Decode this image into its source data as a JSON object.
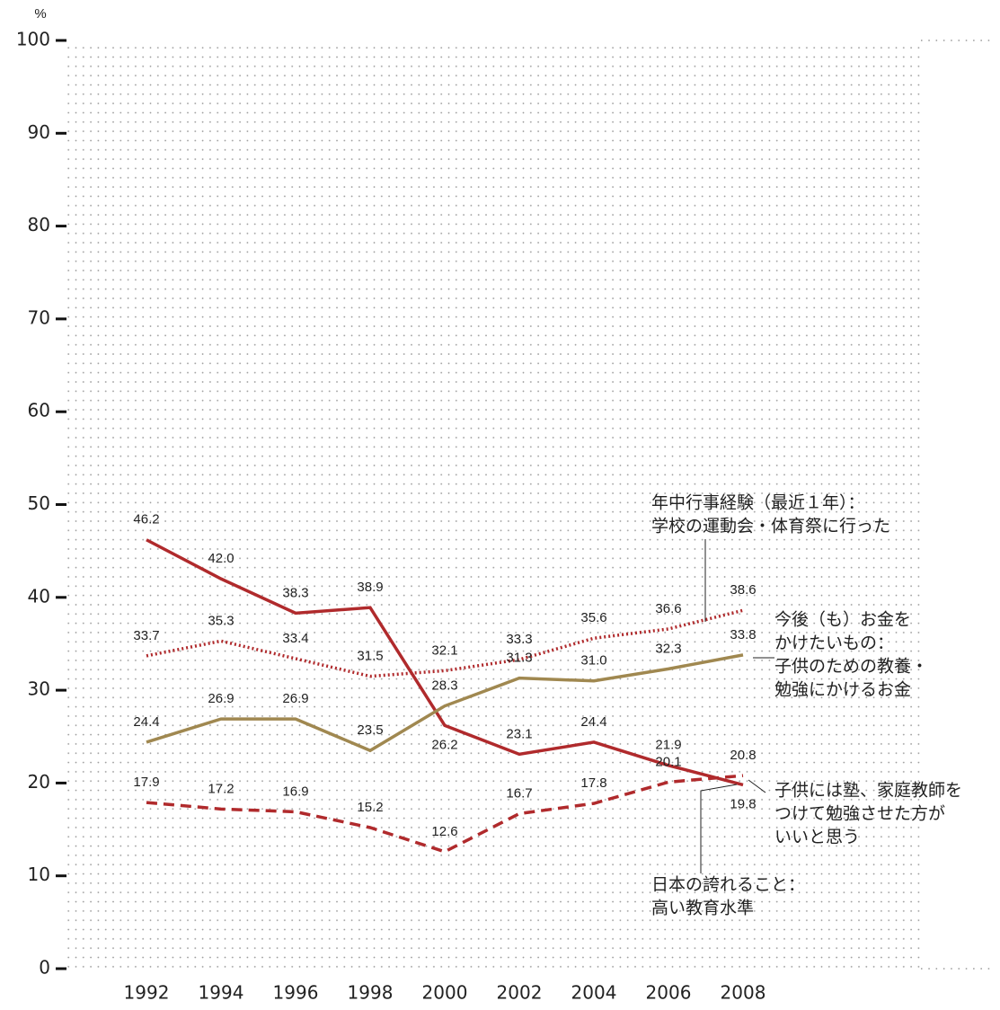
{
  "chart_data": {
    "type": "line",
    "y_label": "%",
    "x": [
      1992,
      1994,
      1996,
      1998,
      2000,
      2002,
      2004,
      2006,
      2008
    ],
    "ylim": [
      0,
      100
    ],
    "yticks": [
      0,
      10,
      20,
      30,
      40,
      50,
      60,
      70,
      80,
      90,
      100
    ],
    "grid": "dotted",
    "series": [
      {
        "name": [
          "日本の誇れること：",
          "高い教育水準"
        ],
        "color": "#b02a2c",
        "style": "solid",
        "values": [
          46.2,
          42.0,
          38.3,
          38.9,
          26.2,
          23.1,
          24.4,
          21.9,
          19.8
        ],
        "value_labels": [
          "46.2",
          "42.0",
          "38.3",
          "38.9",
          "26.2",
          "23.1",
          "24.4",
          "21.9",
          "19.8"
        ]
      },
      {
        "name": [
          "年中行事経験（最近１年）：",
          "学校の運動会・体育祭に行った"
        ],
        "color": "#b02a2c",
        "style": "dotted",
        "values": [
          33.7,
          35.3,
          33.4,
          31.5,
          32.1,
          33.3,
          35.6,
          36.6,
          38.6
        ],
        "value_labels": [
          "33.7",
          "35.3",
          "33.4",
          "31.5",
          "32.1",
          "33.3",
          "35.6",
          "36.6",
          "38.6"
        ]
      },
      {
        "name": [
          "今後（も）お金を",
          "かけたいもの：",
          "子供のための教養・",
          "勉強にかけるお金"
        ],
        "color": "#a08850",
        "style": "solid",
        "values": [
          24.4,
          26.9,
          26.9,
          23.5,
          28.3,
          31.3,
          31.0,
          32.3,
          33.8
        ],
        "value_labels": [
          "24.4",
          "26.9",
          "26.9",
          "23.5",
          "28.3",
          "31.3",
          "31.0",
          "32.3",
          "33.8"
        ]
      },
      {
        "name": [
          "子供には塾、家庭教師を",
          "つけて勉強させた方が",
          "いいと思う"
        ],
        "color": "#b02a2c",
        "style": "dashed",
        "values": [
          17.9,
          17.2,
          16.9,
          15.2,
          12.6,
          16.7,
          17.8,
          20.1,
          20.8
        ],
        "value_labels": [
          "17.9",
          "17.2",
          "16.9",
          "15.2",
          "12.6",
          "16.7",
          "17.8",
          "20.1",
          "20.8"
        ]
      }
    ]
  }
}
